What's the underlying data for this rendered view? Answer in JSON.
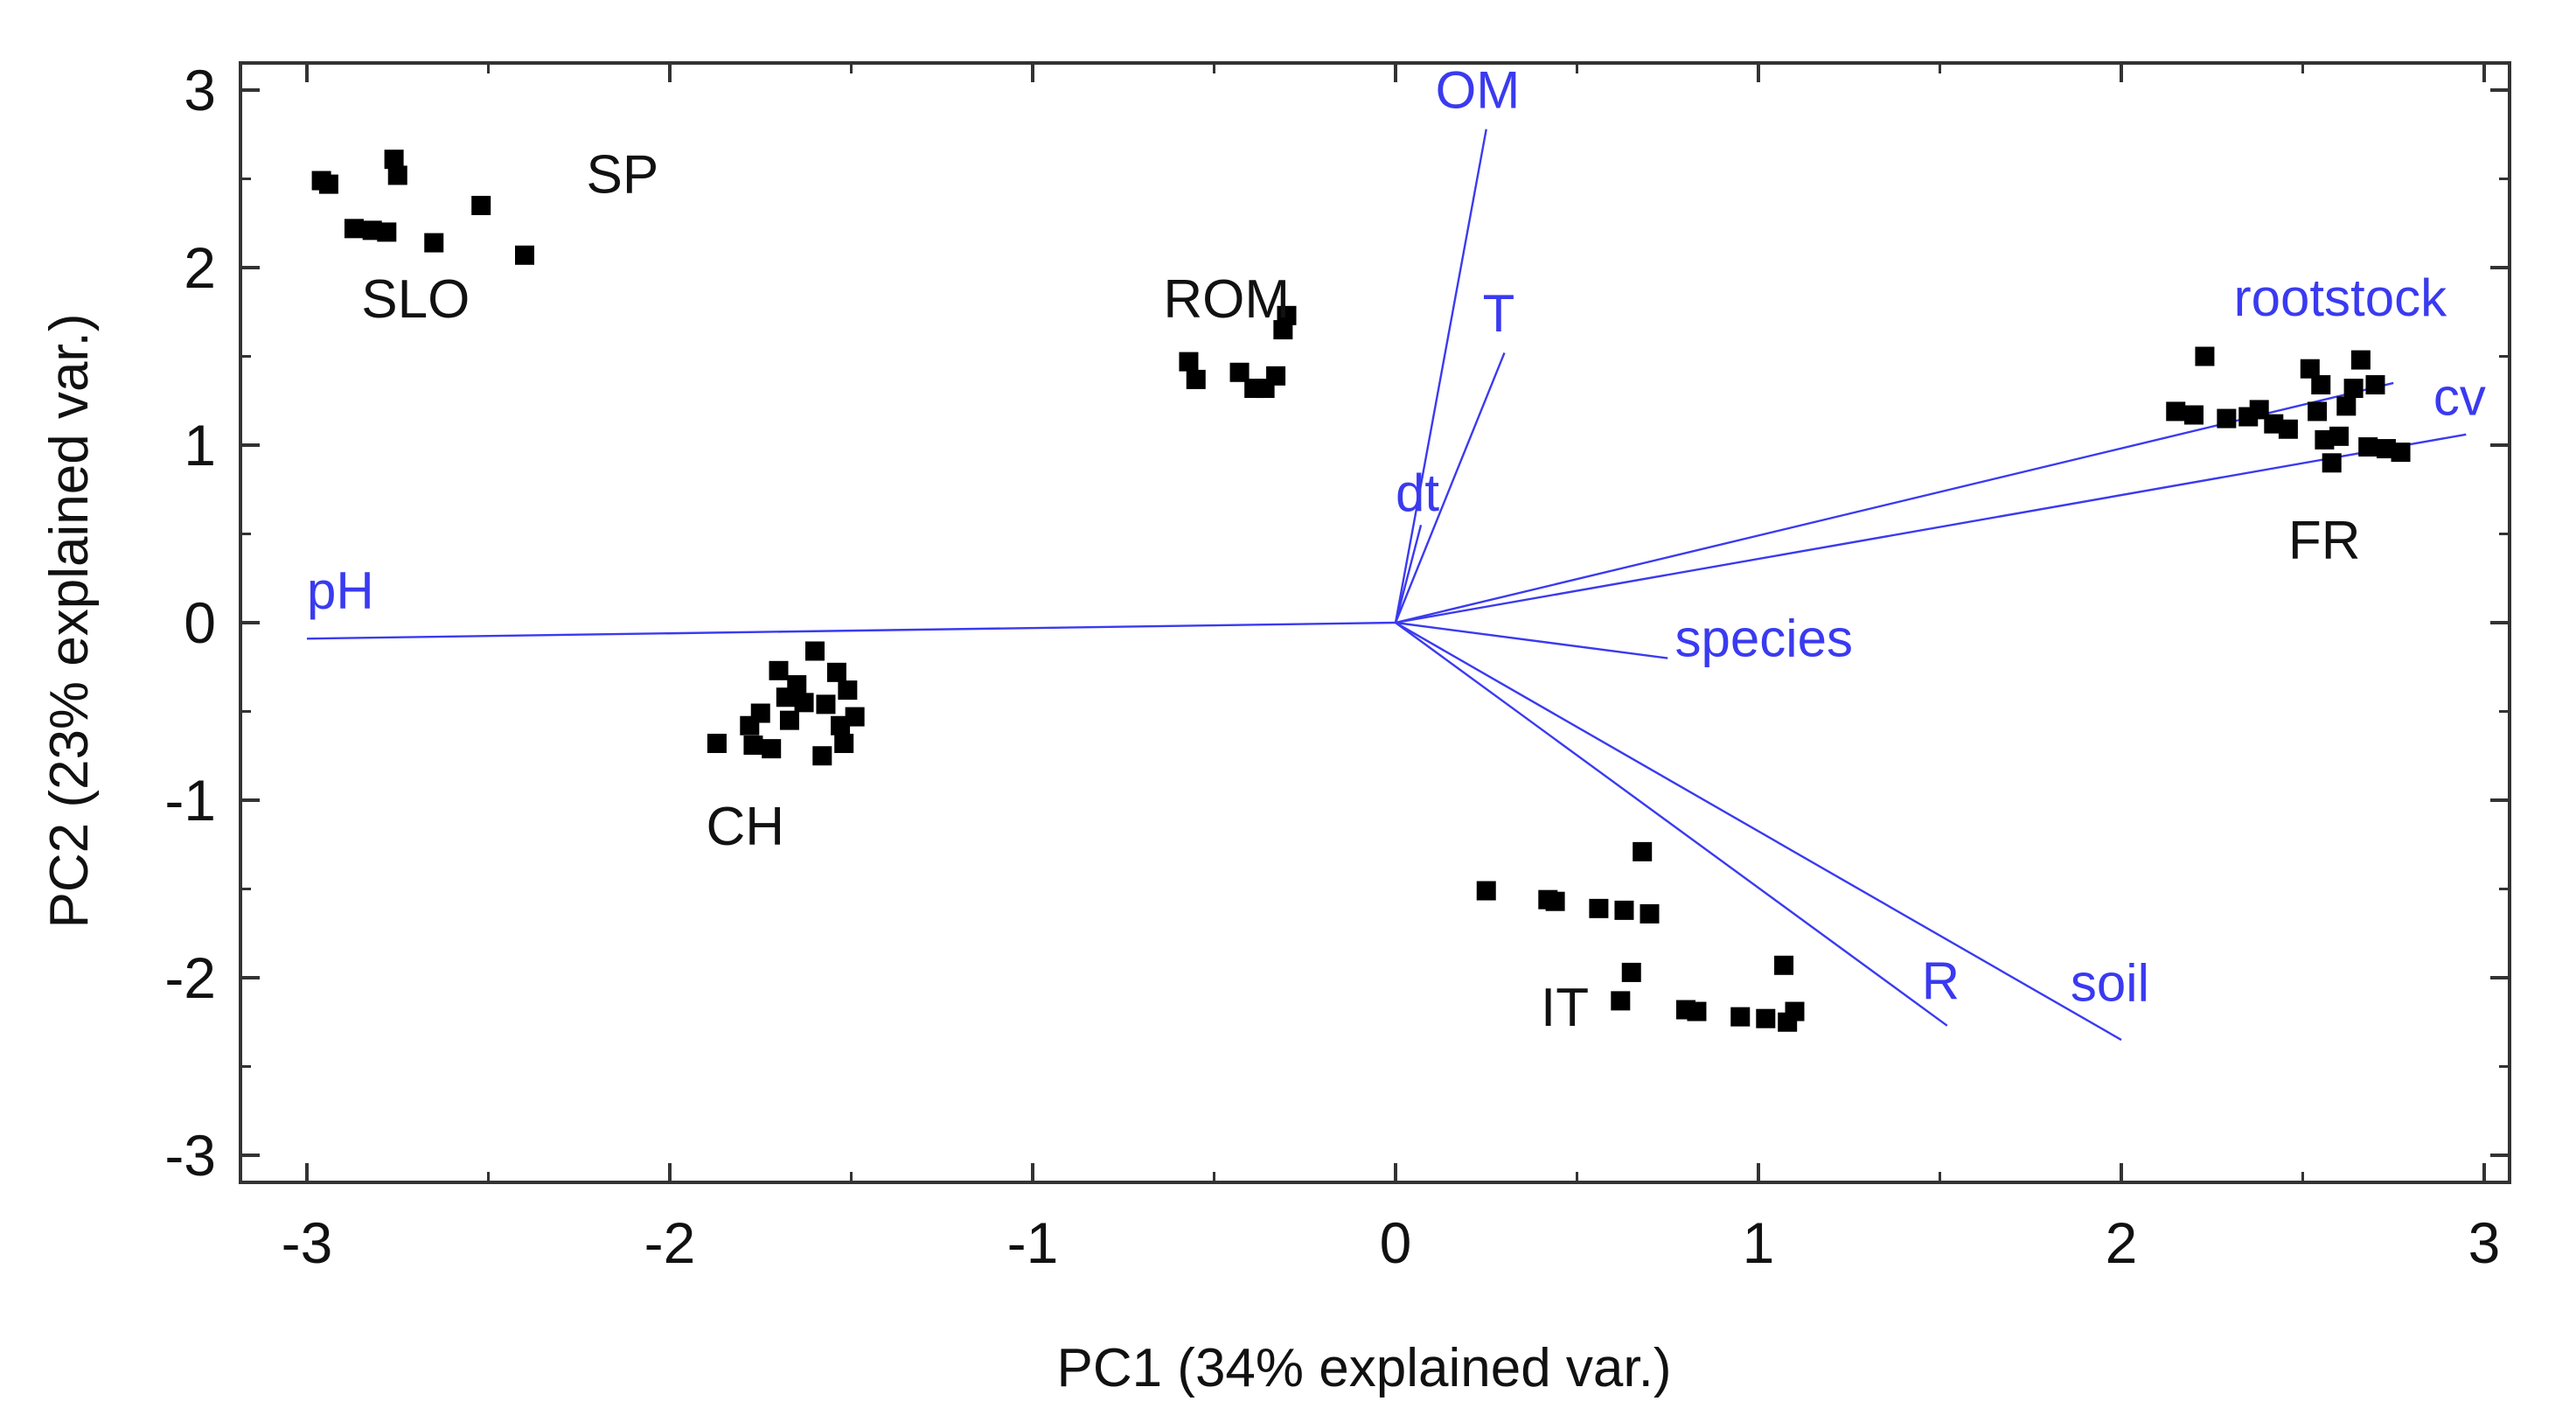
{
  "chart_data": {
    "type": "scatter",
    "subtype": "pca-biplot",
    "xlabel": "PC1 (34% explained var.)",
    "ylabel": "PC2 (23% explained var.)",
    "xlim": [
      -3.2,
      3.0
    ],
    "ylim": [
      -3.15,
      3.15
    ],
    "xticks": [
      -3,
      -2,
      -1,
      0,
      1,
      2,
      3
    ],
    "yticks": [
      -3,
      -2,
      -1,
      0,
      1,
      2,
      3
    ],
    "xtick_labels": [
      "-3",
      "-2",
      "-1",
      "0",
      "1",
      "2",
      "3"
    ],
    "ytick_labels": [
      "-3",
      "-2",
      "-1",
      "0",
      "1",
      "2",
      "3"
    ],
    "grid": false,
    "colors": {
      "points": "#000000",
      "vectors": "#3a3af0",
      "axes": "#333333"
    },
    "groups": [
      {
        "name": "SP",
        "label_pos": [
          -2.23,
          2.42
        ],
        "points": [
          [
            -2.52,
            2.35
          ],
          [
            -2.4,
            2.07
          ]
        ]
      },
      {
        "name": "SLO",
        "label_pos": [
          -2.85,
          1.72
        ],
        "points": [
          [
            -2.96,
            2.49
          ],
          [
            -2.94,
            2.47
          ],
          [
            -2.87,
            2.22
          ],
          [
            -2.82,
            2.21
          ],
          [
            -2.78,
            2.2
          ],
          [
            -2.76,
            2.61
          ],
          [
            -2.75,
            2.52
          ],
          [
            -2.65,
            2.14
          ]
        ]
      },
      {
        "name": "ROM",
        "label_pos": [
          -0.64,
          1.72
        ],
        "points": [
          [
            -0.57,
            1.47
          ],
          [
            -0.55,
            1.37
          ],
          [
            -0.43,
            1.41
          ],
          [
            -0.39,
            1.32
          ],
          [
            -0.36,
            1.32
          ],
          [
            -0.33,
            1.39
          ],
          [
            -0.31,
            1.65
          ],
          [
            -0.3,
            1.73
          ]
        ]
      },
      {
        "name": "CH",
        "label_pos": [
          -1.9,
          -1.25
        ],
        "points": [
          [
            -1.87,
            -0.68
          ],
          [
            -1.78,
            -0.58
          ],
          [
            -1.77,
            -0.69
          ],
          [
            -1.75,
            -0.51
          ],
          [
            -1.72,
            -0.71
          ],
          [
            -1.7,
            -0.27
          ],
          [
            -1.68,
            -0.42
          ],
          [
            -1.67,
            -0.55
          ],
          [
            -1.65,
            -0.35
          ],
          [
            -1.63,
            -0.45
          ],
          [
            -1.6,
            -0.16
          ],
          [
            -1.58,
            -0.75
          ],
          [
            -1.57,
            -0.46
          ],
          [
            -1.54,
            -0.28
          ],
          [
            -1.53,
            -0.58
          ],
          [
            -1.52,
            -0.68
          ],
          [
            -1.51,
            -0.38
          ],
          [
            -1.49,
            -0.53
          ]
        ]
      },
      {
        "name": "IT",
        "label_pos": [
          0.4,
          -2.27
        ],
        "points": [
          [
            0.25,
            -1.51
          ],
          [
            0.42,
            -1.56
          ],
          [
            0.44,
            -1.57
          ],
          [
            0.56,
            -1.61
          ],
          [
            0.63,
            -1.62
          ],
          [
            0.62,
            -2.13
          ],
          [
            0.65,
            -1.97
          ],
          [
            0.68,
            -1.29
          ],
          [
            0.7,
            -1.64
          ],
          [
            0.8,
            -2.18
          ],
          [
            0.83,
            -2.19
          ],
          [
            0.95,
            -2.22
          ],
          [
            1.02,
            -2.23
          ],
          [
            1.07,
            -1.93
          ],
          [
            1.08,
            -2.25
          ],
          [
            1.1,
            -2.19
          ]
        ]
      },
      {
        "name": "FR",
        "label_pos": [
          2.46,
          0.36
        ],
        "points": [
          [
            2.15,
            1.19
          ],
          [
            2.2,
            1.17
          ],
          [
            2.23,
            1.5
          ],
          [
            2.29,
            1.15
          ],
          [
            2.35,
            1.16
          ],
          [
            2.38,
            1.2
          ],
          [
            2.42,
            1.12
          ],
          [
            2.46,
            1.09
          ],
          [
            2.52,
            1.43
          ],
          [
            2.54,
            1.19
          ],
          [
            2.55,
            1.34
          ],
          [
            2.56,
            1.03
          ],
          [
            2.58,
            0.9
          ],
          [
            2.6,
            1.05
          ],
          [
            2.62,
            1.22
          ],
          [
            2.64,
            1.32
          ],
          [
            2.66,
            1.48
          ],
          [
            2.68,
            0.99
          ],
          [
            2.7,
            1.34
          ],
          [
            2.73,
            0.98
          ],
          [
            2.77,
            0.96
          ]
        ]
      }
    ],
    "vectors": [
      {
        "name": "OM",
        "end": [
          0.25,
          2.78
        ],
        "label_pos": [
          0.11,
          2.9
        ]
      },
      {
        "name": "T",
        "end": [
          0.3,
          1.52
        ],
        "label_pos": [
          0.24,
          1.64
        ]
      },
      {
        "name": "dt",
        "end": [
          0.07,
          0.55
        ],
        "label_pos": [
          0.0,
          0.63
        ]
      },
      {
        "name": "pH",
        "end": [
          -3.0,
          -0.09
        ],
        "label_pos": [
          -3.0,
          0.08
        ]
      },
      {
        "name": "species",
        "end": [
          0.75,
          -0.2
        ],
        "label_pos": [
          0.77,
          -0.19
        ]
      },
      {
        "name": "R",
        "end": [
          1.52,
          -2.27
        ],
        "label_pos": [
          1.45,
          -2.12
        ]
      },
      {
        "name": "soil",
        "end": [
          2.0,
          -2.35
        ],
        "label_pos": [
          1.86,
          -2.13
        ]
      },
      {
        "name": "rootstock",
        "end": [
          2.75,
          1.35
        ],
        "label_pos": [
          2.31,
          1.73
        ]
      },
      {
        "name": "cv",
        "end": [
          2.95,
          1.06
        ],
        "label_pos": [
          2.86,
          1.17
        ]
      }
    ]
  }
}
